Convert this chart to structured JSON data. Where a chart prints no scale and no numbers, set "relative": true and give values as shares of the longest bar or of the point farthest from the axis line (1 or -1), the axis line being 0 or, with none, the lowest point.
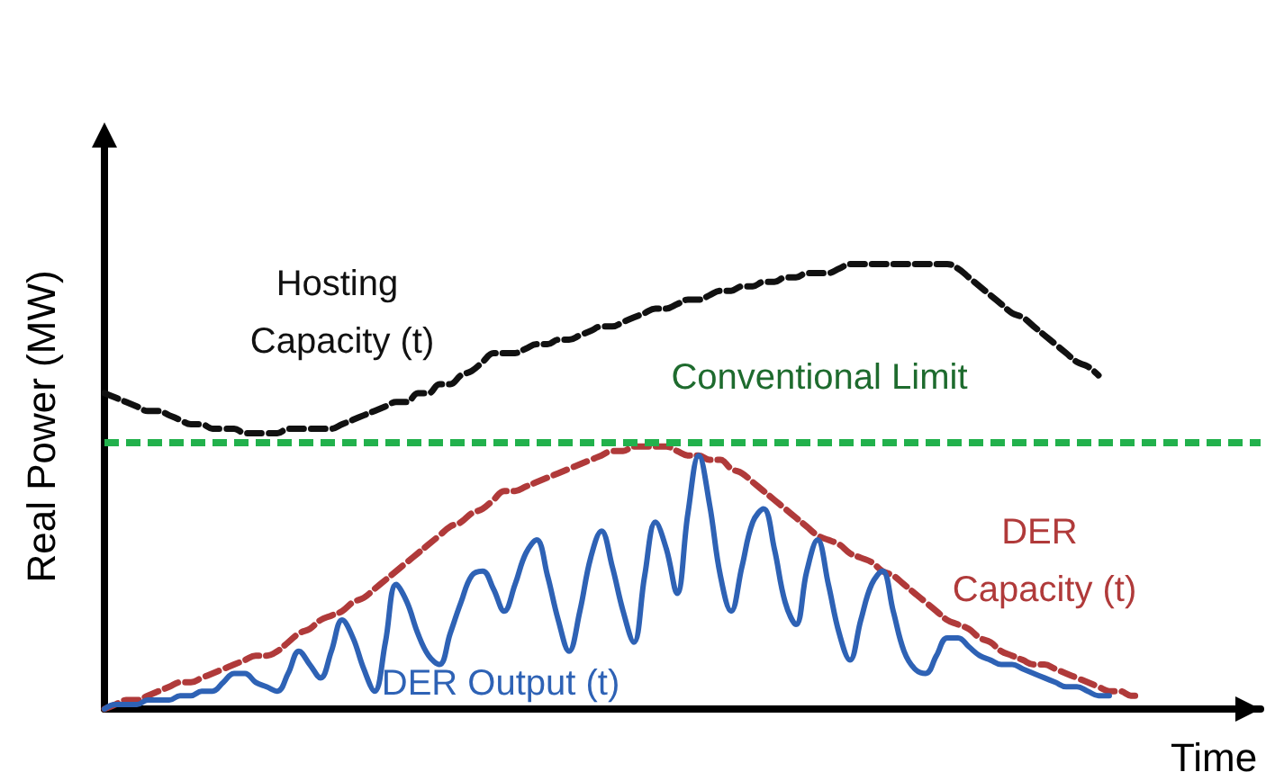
{
  "chart_data": {
    "type": "line",
    "relative": true,
    "xlabel": "Time",
    "ylabel": "Real Power (MW)",
    "legend": false,
    "grid": false,
    "tick_labels": false,
    "marker": "none",
    "categories": [
      null,
      null,
      null,
      null,
      null,
      null,
      null,
      null,
      null,
      null,
      null,
      null,
      null,
      null,
      null,
      null,
      null,
      null,
      null,
      null,
      null,
      null,
      null,
      null,
      null,
      null,
      null,
      null,
      null,
      null,
      null,
      null,
      null,
      null,
      null,
      null,
      null,
      null,
      null,
      null,
      null,
      null,
      null,
      null,
      null,
      null,
      null,
      null,
      null,
      null,
      null,
      null,
      null,
      null,
      null,
      null,
      null,
      null,
      null,
      null,
      null,
      null,
      null,
      null,
      null,
      null,
      null,
      null,
      null,
      null,
      null,
      null,
      null,
      null,
      null,
      null,
      null,
      null,
      null,
      null,
      null,
      null,
      null,
      null,
      null,
      null,
      null,
      null,
      null,
      null,
      null,
      null,
      null,
      null,
      null,
      null,
      null,
      null,
      null,
      null,
      null,
      null,
      null,
      null,
      null,
      null,
      null,
      null
    ],
    "series": [
      {
        "name": "Hosting Capacity (t)",
        "color": "#111111",
        "line_style": "dashed",
        "values": [
          0.71,
          0.7,
          0.69,
          0.68,
          0.67,
          0.67,
          0.66,
          0.65,
          0.64,
          0.64,
          0.63,
          0.63,
          0.63,
          0.62,
          0.62,
          0.62,
          0.62,
          0.63,
          0.63,
          0.63,
          0.63,
          0.63,
          0.64,
          0.65,
          0.66,
          0.67,
          0.68,
          0.69,
          0.69,
          0.71,
          0.71,
          0.73,
          0.73,
          0.75,
          0.76,
          0.78,
          0.8,
          0.8,
          0.8,
          0.81,
          0.82,
          0.82,
          0.83,
          0.83,
          0.84,
          0.85,
          0.86,
          0.86,
          0.87,
          0.88,
          0.89,
          0.9,
          0.9,
          0.91,
          0.92,
          0.92,
          0.93,
          0.94,
          0.94,
          0.95,
          0.95,
          0.96,
          0.96,
          0.97,
          0.97,
          0.98,
          0.98,
          0.98,
          0.99,
          1.0,
          1.0,
          1.0,
          1.0,
          1.0,
          1.0,
          1.0,
          1.0,
          1.0,
          1.0,
          0.99,
          0.97,
          0.95,
          0.93,
          0.91,
          0.89,
          0.88,
          0.86,
          0.84,
          0.82,
          0.8,
          0.78,
          0.77,
          0.75,
          null,
          null,
          null,
          null,
          null,
          null,
          null,
          null,
          null,
          null,
          null,
          null,
          null,
          null,
          null
        ]
      },
      {
        "name": "DER Capacity (t)",
        "color": "#b03a3a",
        "line_style": "dashed",
        "values": [
          0,
          0.01,
          0.02,
          0.02,
          0.03,
          0.04,
          0.05,
          0.06,
          0.06,
          0.07,
          0.08,
          0.09,
          0.1,
          0.11,
          0.12,
          0.12,
          0.13,
          0.15,
          0.17,
          0.18,
          0.2,
          0.21,
          0.22,
          0.24,
          0.25,
          0.27,
          0.29,
          0.31,
          0.33,
          0.35,
          0.37,
          0.39,
          0.41,
          0.42,
          0.44,
          0.45,
          0.47,
          0.49,
          0.49,
          0.5,
          0.51,
          0.52,
          0.53,
          0.54,
          0.55,
          0.56,
          0.57,
          0.58,
          0.58,
          0.59,
          0.59,
          0.59,
          0.59,
          0.58,
          0.57,
          0.57,
          0.56,
          0.56,
          0.54,
          0.53,
          0.51,
          0.49,
          0.47,
          0.45,
          0.43,
          0.41,
          0.39,
          0.38,
          0.37,
          0.35,
          0.34,
          0.33,
          0.31,
          0.3,
          0.28,
          0.26,
          0.24,
          0.22,
          0.2,
          0.19,
          0.18,
          0.16,
          0.15,
          0.13,
          0.12,
          0.11,
          0.1,
          0.1,
          0.09,
          0.08,
          0.07,
          0.06,
          0.05,
          0.04,
          0.04,
          0.03,
          0.03,
          null,
          null,
          null,
          null,
          null,
          null,
          null,
          null,
          null,
          null,
          null
        ]
      },
      {
        "name": "DER Output (t)",
        "color": "#2e62b5",
        "line_style": "solid",
        "values": [
          0,
          0.01,
          0.01,
          0.01,
          0.02,
          0.02,
          0.02,
          0.03,
          0.03,
          0.04,
          0.04,
          0.06,
          0.08,
          0.08,
          0.06,
          0.05,
          0.04,
          0.08,
          0.13,
          0.1,
          0.07,
          0.13,
          0.2,
          0.16,
          0.09,
          0.04,
          0.15,
          0.28,
          0.24,
          0.17,
          0.12,
          0.1,
          0.17,
          0.24,
          0.3,
          0.31,
          0.27,
          0.22,
          0.28,
          0.35,
          0.38,
          0.3,
          0.2,
          0.13,
          0.22,
          0.34,
          0.4,
          0.32,
          0.22,
          0.15,
          0.3,
          0.42,
          0.36,
          0.26,
          0.44,
          0.57,
          0.46,
          0.3,
          0.22,
          0.32,
          0.42,
          0.45,
          0.36,
          0.24,
          0.19,
          0.31,
          0.38,
          0.28,
          0.17,
          0.11,
          0.2,
          0.28,
          0.31,
          0.22,
          0.13,
          0.09,
          0.08,
          0.12,
          0.16,
          0.16,
          0.14,
          0.12,
          0.11,
          0.1,
          0.1,
          0.09,
          0.08,
          0.07,
          0.06,
          0.05,
          0.05,
          0.04,
          0.03,
          0.03,
          null,
          null,
          null,
          null,
          null,
          null,
          null,
          null,
          null,
          null,
          null,
          null,
          null,
          null
        ]
      }
    ],
    "ref_lines": [
      {
        "axis": "y",
        "value": 0.6,
        "label": "Conventional Limit",
        "color": "#22b14c",
        "line_style": "dashed"
      }
    ]
  }
}
